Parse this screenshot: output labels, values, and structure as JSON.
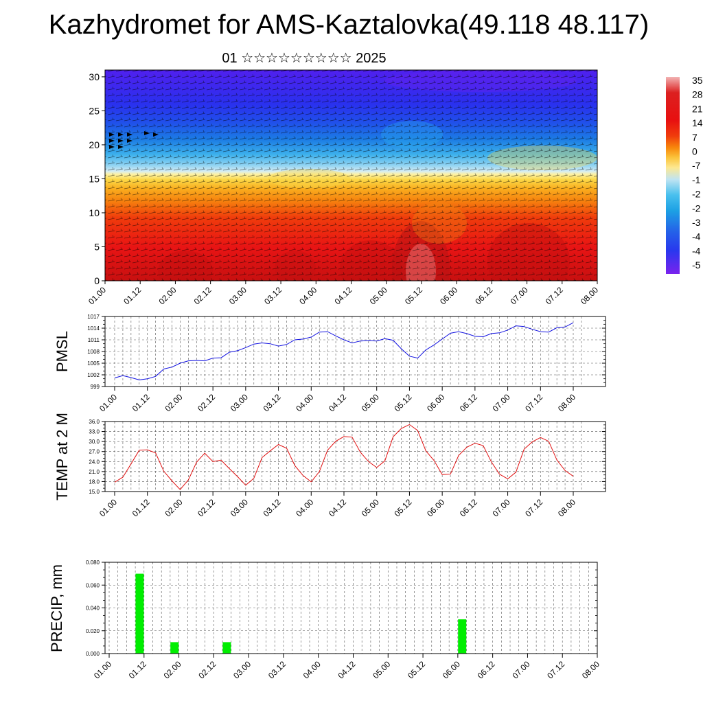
{
  "header": {
    "title": "Kazhydromet for AMS-Kaztalovka(49.118 48.117)",
    "subtitle": "01 ☆☆☆☆☆☆☆☆☆ 2025"
  },
  "colors": {
    "pmsl_line": "#1010e0",
    "temp_line": "#e01010",
    "precip_bar": "#00ee00",
    "grid": "#555555"
  },
  "chart_data": [
    {
      "type": "heatmap",
      "name": "cross-section",
      "x_ticks": [
        "01.00",
        "01.12",
        "02.00",
        "02.12",
        "03.00",
        "03.12",
        "04.00",
        "04.12",
        "05.00",
        "05.12",
        "06.00",
        "06.12",
        "07.00",
        "07.12",
        "08.00"
      ],
      "y_ticks": [
        "0",
        "5",
        "10",
        "15",
        "20",
        "25",
        "30"
      ],
      "ylim": [
        0,
        31
      ],
      "colorbar_labels": [
        "35",
        "28",
        "21",
        "14",
        "7",
        "0",
        "-7",
        "-1",
        "-2",
        "-2",
        "-3",
        "-4",
        "-4",
        "-5"
      ],
      "colorbar_colors": [
        "#f3b4b4",
        "#dc2020",
        "#e80e0e",
        "#f03c0c",
        "#f8880c",
        "#fbc43c",
        "#fde890",
        "#c0e4f2",
        "#48c0ee",
        "#1ca0e4",
        "#2464e8",
        "#2838ee",
        "#3c20f0",
        "#7a22ee"
      ]
    },
    {
      "type": "line",
      "name": "pmsl",
      "ylabel": "PMSL",
      "ylim": [
        999,
        1017
      ],
      "y_ticks": [
        "999",
        "1002",
        "1005",
        "1008",
        "1011",
        "1014",
        "1017"
      ],
      "x_ticks": [
        "01.00",
        "01.12",
        "02.00",
        "02.12",
        "03.00",
        "03.12",
        "04.00",
        "04.12",
        "05.00",
        "05.12",
        "06.00",
        "06.12",
        "07.00",
        "07.12",
        "08.00"
      ],
      "x_step_hours": 3,
      "values": [
        1001.2,
        1001.8,
        1001.3,
        1000.7,
        1001.0,
        1001.6,
        1003.5,
        1004.0,
        1005.0,
        1005.6,
        1005.7,
        1005.6,
        1006.3,
        1006.4,
        1007.8,
        1008.2,
        1009.0,
        1009.9,
        1010.2,
        1010.0,
        1009.4,
        1009.8,
        1011.0,
        1011.2,
        1011.7,
        1013.0,
        1013.1,
        1012.0,
        1011.0,
        1010.2,
        1010.7,
        1010.8,
        1010.7,
        1011.3,
        1010.9,
        1008.7,
        1006.8,
        1006.3,
        1008.4,
        1009.7,
        1011.2,
        1012.7,
        1013.1,
        1012.6,
        1011.9,
        1011.8,
        1012.6,
        1012.8,
        1013.5,
        1014.6,
        1014.4,
        1013.7,
        1013.1,
        1013.0,
        1014.1,
        1014.3,
        1015.4
      ]
    },
    {
      "type": "line",
      "name": "temp",
      "ylabel": "TEMP at 2 M",
      "ylim": [
        15,
        36
      ],
      "y_ticks": [
        "15.0",
        "18.0",
        "21.0",
        "24.0",
        "27.0",
        "30.0",
        "33.0",
        "36.0"
      ],
      "x_ticks": [
        "01.00",
        "01.12",
        "02.00",
        "02.12",
        "03.00",
        "03.12",
        "04.00",
        "04.12",
        "05.00",
        "05.12",
        "06.00",
        "06.12",
        "07.00",
        "07.12",
        "08.00"
      ],
      "x_step_hours": 3,
      "values": [
        17.8,
        19.3,
        23.3,
        27.4,
        27.5,
        26.6,
        21.1,
        18.2,
        15.6,
        18.5,
        23.8,
        26.5,
        24.0,
        24.4,
        21.9,
        19.5,
        16.9,
        19.0,
        25.2,
        27.2,
        29.1,
        28.0,
        22.8,
        19.8,
        17.9,
        21.0,
        27.4,
        30.1,
        31.5,
        31.3,
        26.8,
        24.0,
        22.2,
        24.2,
        31.4,
        33.9,
        35.1,
        33.3,
        27.2,
        24.3,
        20.1,
        20.2,
        25.8,
        28.3,
        29.5,
        28.8,
        23.9,
        20.2,
        18.8,
        20.8,
        27.7,
        29.9,
        31.2,
        30.1,
        24.5,
        21.3,
        19.6
      ]
    },
    {
      "type": "bar",
      "name": "precip",
      "ylabel": "PRECIP, mm",
      "ylim": [
        0,
        0.08
      ],
      "y_ticks": [
        "0.000",
        "0.020",
        "0.040",
        "0.060",
        "0.080"
      ],
      "x_ticks": [
        "01.00",
        "01.12",
        "02.00",
        "02.12",
        "03.00",
        "03.12",
        "04.00",
        "04.12",
        "05.00",
        "05.12",
        "06.00",
        "06.12",
        "07.00",
        "07.12",
        "08.00"
      ],
      "x_step_hours": 3,
      "values": [
        0,
        0,
        0,
        0.07,
        0,
        0,
        0,
        0.01,
        0,
        0,
        0,
        0,
        0,
        0.01,
        0,
        0,
        0,
        0,
        0,
        0,
        0,
        0,
        0,
        0,
        0,
        0,
        0,
        0,
        0,
        0,
        0,
        0,
        0,
        0,
        0,
        0,
        0,
        0,
        0,
        0,
        0.03,
        0,
        0,
        0,
        0,
        0,
        0,
        0,
        0,
        0,
        0,
        0,
        0,
        0,
        0,
        0
      ]
    }
  ]
}
